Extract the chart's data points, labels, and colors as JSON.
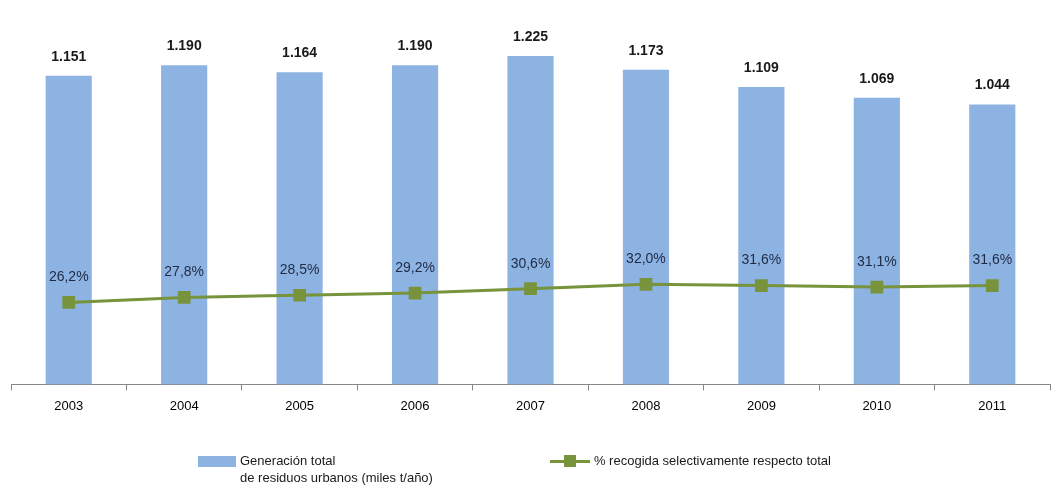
{
  "chart_data": {
    "type": "bar",
    "categories": [
      "2003",
      "2004",
      "2005",
      "2006",
      "2007",
      "2008",
      "2009",
      "2010",
      "2011"
    ],
    "series": [
      {
        "name": "Generación total\nde residuos urbanos (miles t/año)",
        "color": "#8db3e2",
        "values": [
          1151,
          1190,
          1164,
          1190,
          1225,
          1173,
          1109,
          1069,
          1044
        ],
        "value_labels": [
          "1.151",
          "1.190",
          "1.164",
          "1.190",
          "1.225",
          "1.173",
          "1.109",
          "1.069",
          "1.044"
        ]
      },
      {
        "name": "% recogida selectivamente respecto total",
        "type": "line",
        "axis": "y2",
        "color": "#77933c",
        "values": [
          26.2,
          27.8,
          28.5,
          29.2,
          30.6,
          32.0,
          31.6,
          31.1,
          31.6
        ],
        "value_labels": [
          "26,2%",
          "27,8%",
          "28,5%",
          "29,2%",
          "30,6%",
          "32,0%",
          "31,6%",
          "31,1%",
          "31,6%"
        ]
      }
    ],
    "tick_labels": "x",
    "legend": "bottom",
    "marker": "square",
    "line_style": "solid"
  }
}
